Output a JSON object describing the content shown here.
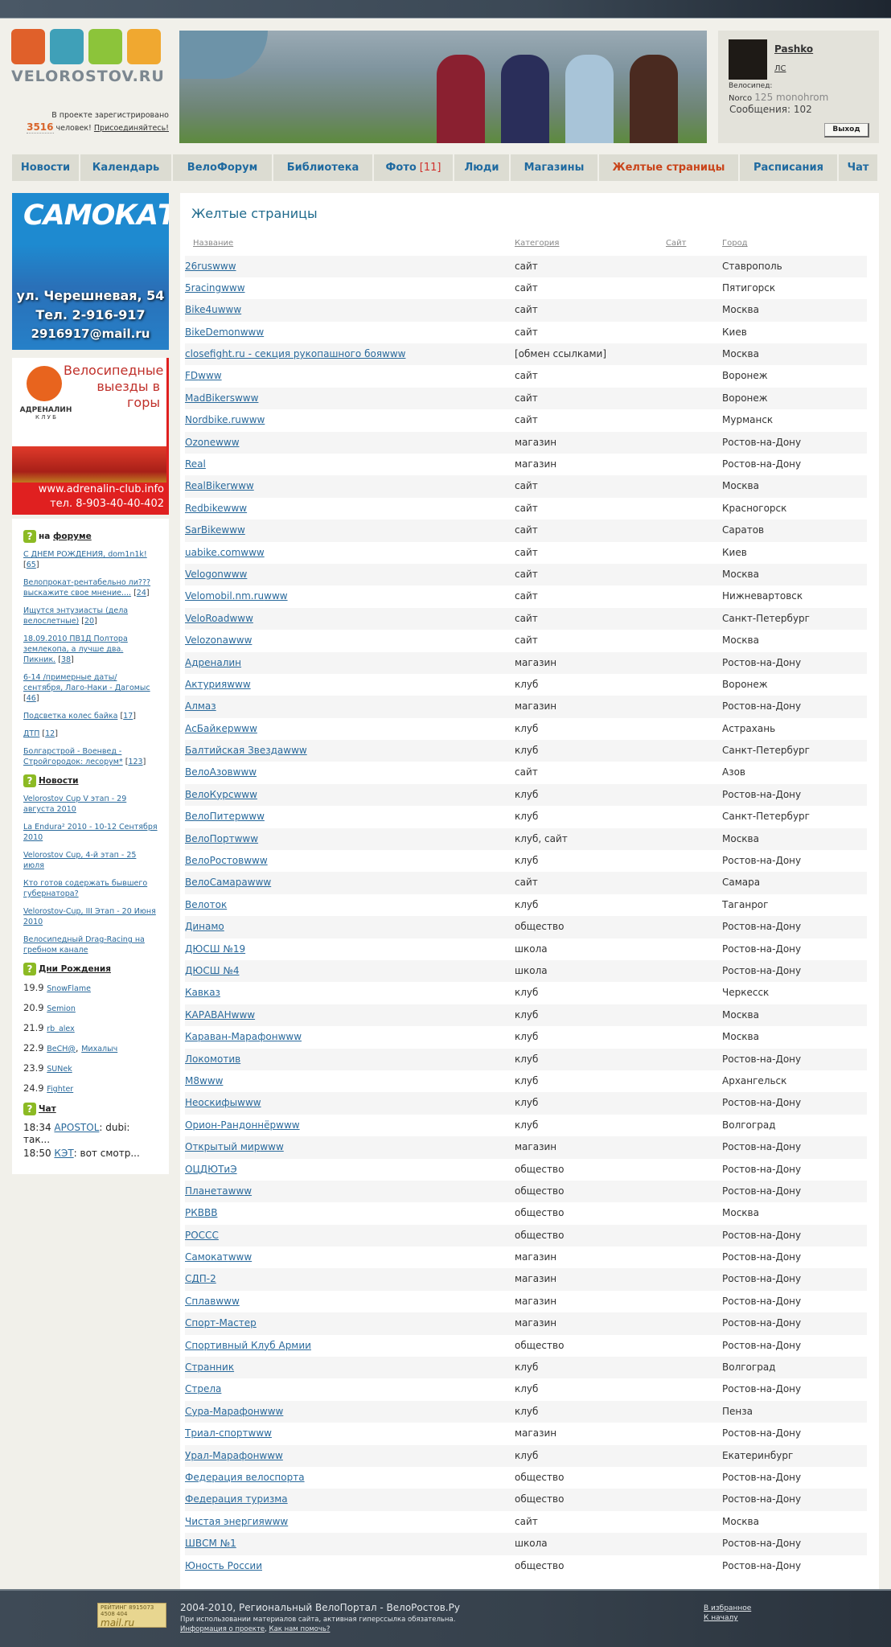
{
  "header": {
    "logo_text": "VELOROSTOV.RU",
    "register_text_1": "В проекте зарегистрировано",
    "register_count": "3516",
    "register_text_2": "человек!",
    "join_link": "Присоединяйтесь!"
  },
  "user": {
    "name": "Pashko",
    "pm": "ЛС",
    "bike_label": "Велосипед:",
    "bike_brand": "Norco",
    "bike_model": "125 monohrom",
    "messages_label": "Сообщения:",
    "messages_count": "102",
    "logout": "Выход"
  },
  "nav": [
    {
      "label": "Новости"
    },
    {
      "label": "Календарь"
    },
    {
      "label": "ВелоФорум"
    },
    {
      "label": "Библиотека"
    },
    {
      "label": "Фото",
      "badge": "[11]"
    },
    {
      "label": "Люди"
    },
    {
      "label": "Магазины"
    },
    {
      "label": "Желтые страницы",
      "active": true
    },
    {
      "label": "Расписания"
    },
    {
      "label": "Чат"
    }
  ],
  "ads": {
    "samokat": {
      "title": "САМОКАТ",
      "address": "ул. Черешневая, 54",
      "phone": "Тел. 2-916-917",
      "email": "2916917@mail.ru"
    },
    "adrenalin": {
      "headline": "Велосипедные выезды в горы",
      "club": "АДРЕНАЛИН",
      "club_sub": "К Л У Б",
      "url": "www.adrenalin-club.info",
      "phone": "тел. 8-903-40-40-402"
    }
  },
  "sidebar": {
    "forum_prefix": "на",
    "forum_title": "форуме",
    "forum": [
      {
        "t": "С ДНЕМ РОЖДЕНИЯ, dom1n1k!",
        "n": "65"
      },
      {
        "t": "Велопрокат-рентабельно ли??? выскажите свое мнение....",
        "n": "24"
      },
      {
        "t": "Ищутся энтузиасты (дела велослетные)",
        "n": "20"
      },
      {
        "t": "18.09.2010 ПВ1Д Полтора землекопа, а лучше два. Пикник.",
        "n": "38"
      },
      {
        "t": "6-14 /примерные даты/ сентября, Лаго-Наки - Дагомыс",
        "n": "46"
      },
      {
        "t": "Подсветка колес байка",
        "n": "17"
      },
      {
        "t": "ДТП",
        "n": "12"
      },
      {
        "t": "Болгарстрой - Военвед - Стройгородок: лесорум*",
        "n": "123"
      }
    ],
    "news_title": "Новости",
    "news": [
      "Velorostov Cup V этап - 29 августа 2010",
      "La Endura² 2010 - 10-12 Сентября 2010",
      "Velorostov Cup, 4-й этап - 25 июля",
      "Кто готов содержать бывшего губернатора?",
      "Velorostov-Cup, III Этап - 20 Июня 2010",
      "Велосипедный Drag-Racing на гребном канале"
    ],
    "bday_title": "Дни Рождения",
    "bdays": [
      {
        "d": "19.9",
        "u": [
          "SnowFlame"
        ]
      },
      {
        "d": "20.9",
        "u": [
          "Semion"
        ]
      },
      {
        "d": "21.9",
        "u": [
          "rb_alex"
        ]
      },
      {
        "d": "22.9",
        "u": [
          "BeCH@",
          "Михалыч"
        ]
      },
      {
        "d": "23.9",
        "u": [
          "SUNek"
        ]
      },
      {
        "d": "24.9",
        "u": [
          "Fighter"
        ]
      }
    ],
    "chat_title": "Чат",
    "chat": [
      {
        "time": "18:34",
        "user": "APOSTOL",
        "msg": ": dubi: так..."
      },
      {
        "time": "18:50",
        "user": "КЭТ",
        "msg": ": вот смотр..."
      }
    ]
  },
  "main": {
    "title": "Желтые страницы",
    "columns": [
      "Название",
      "Категория",
      "Сайт",
      "Город"
    ],
    "rows": [
      [
        "26rus",
        "сайт",
        "www",
        "Ставрополь"
      ],
      [
        "5racing",
        "сайт",
        "www",
        "Пятигорск"
      ],
      [
        "Bike4u",
        "сайт",
        "www",
        "Москва"
      ],
      [
        "BikeDemon",
        "сайт",
        "www",
        "Киев"
      ],
      [
        "closefight.ru - секция рукопашного боя",
        "[обмен ссылками]",
        "www",
        "Москва"
      ],
      [
        "FD",
        "сайт",
        "www",
        "Воронеж"
      ],
      [
        "MadBikers",
        "сайт",
        "www",
        "Воронеж"
      ],
      [
        "Nordbike.ru",
        "сайт",
        "www",
        "Мурманск"
      ],
      [
        "Ozone",
        "магазин",
        "www",
        "Ростов-на-Дону"
      ],
      [
        "Real",
        "магазин",
        "",
        "Ростов-на-Дону"
      ],
      [
        "RealBiker",
        "сайт",
        "www",
        "Москва"
      ],
      [
        "Redbike",
        "сайт",
        "www",
        "Красногорск"
      ],
      [
        "SarBike",
        "сайт",
        "www",
        "Саратов"
      ],
      [
        "uabike.com",
        "сайт",
        "www",
        "Киев"
      ],
      [
        "Velogon",
        "сайт",
        "www",
        "Москва"
      ],
      [
        "Velomobil.nm.ru",
        "сайт",
        "www",
        "Нижневартовск"
      ],
      [
        "VeloRoad",
        "сайт",
        "www",
        "Санкт-Петербург"
      ],
      [
        "Velozona",
        "сайт",
        "www",
        "Москва"
      ],
      [
        "Адреналин",
        "магазин",
        "",
        "Ростов-на-Дону"
      ],
      [
        "Актурия",
        "клуб",
        "www",
        "Воронеж"
      ],
      [
        "Алмаз",
        "магазин",
        "",
        "Ростов-на-Дону"
      ],
      [
        "АсБайкер",
        "клуб",
        "www",
        "Астрахань"
      ],
      [
        "Балтийская Звезда",
        "клуб",
        "www",
        "Санкт-Петербург"
      ],
      [
        "ВелоАзов",
        "сайт",
        "www",
        "Азов"
      ],
      [
        "ВелоКурс",
        "клуб",
        "www",
        "Ростов-на-Дону"
      ],
      [
        "ВелоПитер",
        "клуб",
        "www",
        "Санкт-Петербург"
      ],
      [
        "ВелоПорт",
        "клуб, сайт",
        "www",
        "Москва"
      ],
      [
        "ВелоРостов",
        "клуб",
        "www",
        "Ростов-на-Дону"
      ],
      [
        "ВелоСамара",
        "сайт",
        "www",
        "Самара"
      ],
      [
        "Велоток",
        "клуб",
        "",
        "Таганрог"
      ],
      [
        "Динамо",
        "общество",
        "",
        "Ростов-на-Дону"
      ],
      [
        "ДЮСШ №19",
        "школа",
        "",
        "Ростов-на-Дону"
      ],
      [
        "ДЮСШ №4",
        "школа",
        "",
        "Ростов-на-Дону"
      ],
      [
        "Кавказ",
        "клуб",
        "",
        "Черкесск"
      ],
      [
        "КАРАВАН",
        "клуб",
        "www",
        "Москва"
      ],
      [
        "Караван-Марафон",
        "клуб",
        "www",
        "Москва"
      ],
      [
        "Локомотив",
        "клуб",
        "",
        "Ростов-на-Дону"
      ],
      [
        "М8",
        "клуб",
        "www",
        "Архангельск"
      ],
      [
        "Неоскифы",
        "клуб",
        "www",
        "Ростов-на-Дону"
      ],
      [
        "Орион-Рандоннёр",
        "клуб",
        "www",
        "Волгоград"
      ],
      [
        "Открытый мир",
        "магазин",
        "www",
        "Ростов-на-Дону"
      ],
      [
        "ОЦДЮТиЭ",
        "общество",
        "",
        "Ростов-на-Дону"
      ],
      [
        "Планета",
        "общество",
        "www",
        "Ростов-на-Дону"
      ],
      [
        "РКВВВ",
        "общество",
        "",
        "Москва"
      ],
      [
        "РОССС",
        "общество",
        "",
        "Ростов-на-Дону"
      ],
      [
        "Самокат",
        "магазин",
        "www",
        "Ростов-на-Дону"
      ],
      [
        "СДП-2",
        "магазин",
        "",
        "Ростов-на-Дону"
      ],
      [
        "Сплав",
        "магазин",
        "www",
        "Ростов-на-Дону"
      ],
      [
        "Спорт-Мастер",
        "магазин",
        "",
        "Ростов-на-Дону"
      ],
      [
        "Спортивный Клуб Армии",
        "общество",
        "",
        "Ростов-на-Дону"
      ],
      [
        "Странник",
        "клуб",
        "",
        "Волгоград"
      ],
      [
        "Стрела",
        "клуб",
        "",
        "Ростов-на-Дону"
      ],
      [
        "Сура-Марафон",
        "клуб",
        "www",
        "Пенза"
      ],
      [
        "Триал-спорт",
        "магазин",
        "www",
        "Ростов-на-Дону"
      ],
      [
        "Урал-Марафон",
        "клуб",
        "www",
        "Екатеринбург"
      ],
      [
        "Федерация велоспорта",
        "общество",
        "",
        "Ростов-на-Дону"
      ],
      [
        "Федерация туризма",
        "общество",
        "",
        "Ростов-на-Дону"
      ],
      [
        "Чистая энергия",
        "сайт",
        "www",
        "Москва"
      ],
      [
        "ШВСМ №1",
        "школа",
        "",
        "Ростов-на-Дону"
      ],
      [
        "Юность России",
        "общество",
        "",
        "Ростов-на-Дону"
      ]
    ]
  },
  "footer": {
    "rating_label": "РЕЙТИНГ",
    "rating_nums": "8915073 4508 404",
    "rating_brand": "mail.ru",
    "copyright": "2004-2010, Региональный ВелоПортал - ВелоРостов.Ру",
    "notice": "При использовании материалов сайта, активная гиперссылка обязательна.",
    "about": "Информация о проекте",
    "help": "Как нам помочь?",
    "favorites": "В избранное",
    "to_top": "К началу"
  },
  "colors": {
    "accent": "#1f6aa0",
    "active_nav": "#c9441a",
    "link": "#2a6a9c",
    "badge": "#8cba24"
  }
}
